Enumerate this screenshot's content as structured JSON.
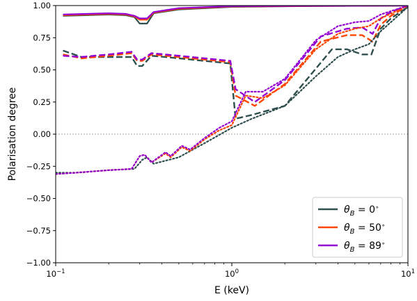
{
  "chart_data": {
    "type": "line",
    "xlabel": "E (keV)",
    "ylabel": "Polarisation degree",
    "xscale": "log",
    "xlim": [
      0.1,
      10
    ],
    "ylim": [
      -1.0,
      1.0
    ],
    "x_ticks": [
      {
        "value": 0.1,
        "base": "10",
        "exp": "−1"
      },
      {
        "value": 1,
        "base": "10",
        "exp": "0"
      },
      {
        "value": 10,
        "base": "10",
        "exp": "1"
      }
    ],
    "y_ticks": [
      {
        "value": -1.0,
        "label": "−1.00"
      },
      {
        "value": -0.75,
        "label": "−0.75"
      },
      {
        "value": -0.5,
        "label": "−0.50"
      },
      {
        "value": -0.25,
        "label": "−0.25"
      },
      {
        "value": 0.0,
        "label": "0.00"
      },
      {
        "value": 0.25,
        "label": "0.25"
      },
      {
        "value": 0.5,
        "label": "0.50"
      },
      {
        "value": 0.75,
        "label": "0.75"
      },
      {
        "value": 1.0,
        "label": "1.00"
      }
    ],
    "zero_line": true,
    "legend": {
      "placement": "lower-right",
      "entries": [
        {
          "label": "θ_B = 0°",
          "main": "θ",
          "sub": "B",
          "rest": " = 0",
          "sup": "∘",
          "color": "#2f4f4f"
        },
        {
          "label": "θ_B = 50°",
          "main": "θ",
          "sub": "B",
          "rest": " = 50",
          "sup": "∘",
          "color": "#ff4500"
        },
        {
          "label": "θ_B = 89°",
          "main": "θ",
          "sub": "B",
          "rest": " = 89",
          "sup": "∘",
          "color": "#9400d3"
        }
      ]
    },
    "series": [
      {
        "group": "θ_B = 0°",
        "style": "solid",
        "color": "#2f4f4f",
        "points": [
          [
            0.11,
            0.92
          ],
          [
            0.2,
            0.93
          ],
          [
            0.25,
            0.925
          ],
          [
            0.28,
            0.91
          ],
          [
            0.3,
            0.86
          ],
          [
            0.33,
            0.86
          ],
          [
            0.36,
            0.94
          ],
          [
            0.5,
            0.97
          ],
          [
            1,
            0.99
          ],
          [
            3,
            0.996
          ],
          [
            10,
            1.0
          ]
        ]
      },
      {
        "group": "θ_B = 50°",
        "style": "solid",
        "color": "#ff4500",
        "points": [
          [
            0.11,
            0.925
          ],
          [
            0.2,
            0.935
          ],
          [
            0.25,
            0.93
          ],
          [
            0.28,
            0.915
          ],
          [
            0.3,
            0.89
          ],
          [
            0.33,
            0.89
          ],
          [
            0.36,
            0.945
          ],
          [
            0.5,
            0.975
          ],
          [
            1,
            0.993
          ],
          [
            3,
            0.997
          ],
          [
            10,
            1.0
          ]
        ]
      },
      {
        "group": "θ_B = 89°",
        "style": "solid",
        "color": "#9400d3",
        "points": [
          [
            0.11,
            0.93
          ],
          [
            0.2,
            0.94
          ],
          [
            0.25,
            0.935
          ],
          [
            0.28,
            0.92
          ],
          [
            0.3,
            0.9
          ],
          [
            0.33,
            0.9
          ],
          [
            0.36,
            0.95
          ],
          [
            0.5,
            0.98
          ],
          [
            1,
            0.995
          ],
          [
            3,
            0.998
          ],
          [
            10,
            1.0
          ]
        ]
      },
      {
        "group": "θ_B = 0°",
        "style": "dashed",
        "color": "#2f4f4f",
        "points": [
          [
            0.11,
            0.65
          ],
          [
            0.14,
            0.6
          ],
          [
            0.2,
            0.6
          ],
          [
            0.27,
            0.6
          ],
          [
            0.29,
            0.53
          ],
          [
            0.31,
            0.53
          ],
          [
            0.35,
            0.61
          ],
          [
            0.5,
            0.59
          ],
          [
            0.98,
            0.55
          ],
          [
            1.05,
            0.12
          ],
          [
            1.3,
            0.15
          ],
          [
            2,
            0.22
          ],
          [
            3.7,
            0.66
          ],
          [
            4.5,
            0.66
          ],
          [
            5.5,
            0.62
          ],
          [
            6.2,
            0.62
          ],
          [
            7,
            0.82
          ],
          [
            8,
            0.9
          ],
          [
            10,
            0.99
          ]
        ]
      },
      {
        "group": "θ_B = 50°",
        "style": "dashed",
        "color": "#ff4500",
        "points": [
          [
            0.11,
            0.62
          ],
          [
            0.14,
            0.59
          ],
          [
            0.2,
            0.61
          ],
          [
            0.27,
            0.63
          ],
          [
            0.29,
            0.57
          ],
          [
            0.31,
            0.57
          ],
          [
            0.35,
            0.62
          ],
          [
            0.5,
            0.6
          ],
          [
            0.98,
            0.56
          ],
          [
            1.05,
            0.3
          ],
          [
            1.35,
            0.22
          ],
          [
            2,
            0.39
          ],
          [
            3.2,
            0.72
          ],
          [
            4.5,
            0.77
          ],
          [
            5.5,
            0.77
          ],
          [
            6.3,
            0.72
          ],
          [
            7,
            0.85
          ],
          [
            8,
            0.92
          ],
          [
            10,
            1.0
          ]
        ]
      },
      {
        "group": "θ_B = 89°",
        "style": "dashed",
        "color": "#9400d3",
        "points": [
          [
            0.11,
            0.61
          ],
          [
            0.14,
            0.6
          ],
          [
            0.2,
            0.62
          ],
          [
            0.27,
            0.64
          ],
          [
            0.29,
            0.58
          ],
          [
            0.31,
            0.58
          ],
          [
            0.35,
            0.63
          ],
          [
            0.5,
            0.61
          ],
          [
            0.98,
            0.57
          ],
          [
            1.05,
            0.35
          ],
          [
            1.35,
            0.25
          ],
          [
            2,
            0.42
          ],
          [
            3.2,
            0.76
          ],
          [
            4.5,
            0.82
          ],
          [
            5.5,
            0.83
          ],
          [
            6.3,
            0.78
          ],
          [
            7,
            0.9
          ],
          [
            8,
            0.95
          ],
          [
            10,
            1.0
          ]
        ]
      },
      {
        "group": "θ_B = 0°",
        "style": "dotted",
        "color": "#2f4f4f",
        "points": [
          [
            0.1,
            -0.3
          ],
          [
            0.13,
            -0.3
          ],
          [
            0.2,
            -0.28
          ],
          [
            0.28,
            -0.27
          ],
          [
            0.31,
            -0.2
          ],
          [
            0.33,
            -0.18
          ],
          [
            0.36,
            -0.23
          ],
          [
            0.5,
            -0.18
          ],
          [
            0.7,
            -0.07
          ],
          [
            1,
            0.05
          ],
          [
            1.3,
            0.12
          ],
          [
            2,
            0.22
          ],
          [
            3,
            0.45
          ],
          [
            4,
            0.6
          ],
          [
            5,
            0.66
          ],
          [
            6,
            0.7
          ],
          [
            7,
            0.8
          ],
          [
            10,
            0.99
          ]
        ]
      },
      {
        "group": "θ_B = 50°",
        "style": "dotted",
        "color": "#ff4500",
        "points": [
          [
            0.1,
            -0.31
          ],
          [
            0.13,
            -0.3
          ],
          [
            0.2,
            -0.28
          ],
          [
            0.27,
            -0.27
          ],
          [
            0.3,
            -0.17
          ],
          [
            0.32,
            -0.16
          ],
          [
            0.35,
            -0.22
          ],
          [
            0.42,
            -0.15
          ],
          [
            0.45,
            -0.18
          ],
          [
            0.52,
            -0.1
          ],
          [
            0.58,
            -0.13
          ],
          [
            0.7,
            -0.04
          ],
          [
            0.85,
            0.03
          ],
          [
            1,
            0.07
          ],
          [
            1.2,
            0.3
          ],
          [
            1.5,
            0.28
          ],
          [
            2,
            0.38
          ],
          [
            3,
            0.66
          ],
          [
            4,
            0.78
          ],
          [
            5,
            0.82
          ],
          [
            6,
            0.84
          ],
          [
            7,
            0.9
          ],
          [
            10,
            1.0
          ]
        ]
      },
      {
        "group": "θ_B = 89°",
        "style": "dotted",
        "color": "#9400d3",
        "points": [
          [
            0.1,
            -0.31
          ],
          [
            0.13,
            -0.3
          ],
          [
            0.2,
            -0.28
          ],
          [
            0.27,
            -0.27
          ],
          [
            0.3,
            -0.17
          ],
          [
            0.32,
            -0.16
          ],
          [
            0.35,
            -0.22
          ],
          [
            0.42,
            -0.14
          ],
          [
            0.45,
            -0.17
          ],
          [
            0.52,
            -0.09
          ],
          [
            0.58,
            -0.12
          ],
          [
            0.7,
            -0.03
          ],
          [
            0.85,
            0.05
          ],
          [
            1,
            0.1
          ],
          [
            1.2,
            0.33
          ],
          [
            1.5,
            0.33
          ],
          [
            2,
            0.43
          ],
          [
            3,
            0.73
          ],
          [
            4,
            0.84
          ],
          [
            5,
            0.87
          ],
          [
            6,
            0.88
          ],
          [
            7,
            0.93
          ],
          [
            10,
            1.0
          ]
        ]
      }
    ]
  }
}
